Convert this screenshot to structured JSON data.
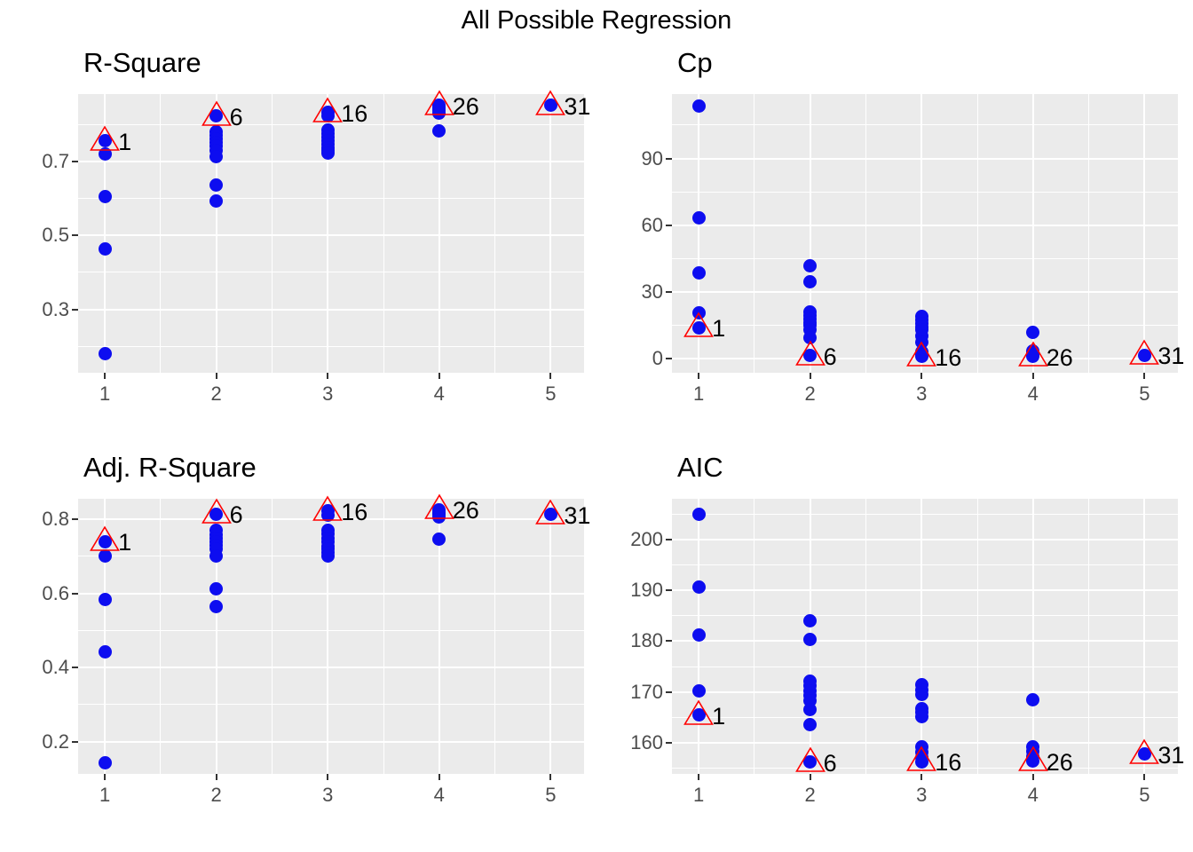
{
  "title": "All Possible Regression",
  "colors": {
    "point": "#0D0DF0",
    "best_marker": "#FF0000",
    "panel_bg": "#EBEBEB",
    "grid": "#FFFFFF",
    "axis_text": "#4D4D4D",
    "tick_mark": "#333333",
    "title_text": "#000000"
  },
  "chart_data": [
    {
      "type": "scatter",
      "title": "R-Square",
      "xlabel": "",
      "ylabel": "",
      "legend": "none",
      "grid": "major+minor",
      "xlim": [
        0.76,
        5.3
      ],
      "ylim": [
        0.129,
        0.882
      ],
      "x_ticks": [
        1,
        2,
        3,
        4,
        5
      ],
      "x_tick_labels": [
        "1",
        "2",
        "3",
        "4",
        "5"
      ],
      "x_minor": [
        1.5,
        2.5,
        3.5,
        4.5
      ],
      "y_major": [
        0.3,
        0.5,
        0.7
      ],
      "y_tick_labels": [
        "0.3",
        "0.5",
        "0.7"
      ],
      "y_minor": [
        0.2,
        0.4,
        0.6,
        0.8
      ],
      "points": [
        [
          1,
          0.755
        ],
        [
          1,
          0.719
        ],
        [
          1,
          0.604
        ],
        [
          1,
          0.464
        ],
        [
          1,
          0.18
        ],
        [
          2,
          0.823
        ],
        [
          2,
          0.781
        ],
        [
          2,
          0.77
        ],
        [
          2,
          0.76
        ],
        [
          2,
          0.751
        ],
        [
          2,
          0.742
        ],
        [
          2,
          0.73
        ],
        [
          2,
          0.714
        ],
        [
          2,
          0.637
        ],
        [
          2,
          0.592
        ],
        [
          3,
          0.832
        ],
        [
          3,
          0.824
        ],
        [
          3,
          0.786
        ],
        [
          3,
          0.776
        ],
        [
          3,
          0.766
        ],
        [
          3,
          0.756
        ],
        [
          3,
          0.747
        ],
        [
          3,
          0.738
        ],
        [
          3,
          0.73
        ],
        [
          3,
          0.722
        ],
        [
          4,
          0.852
        ],
        [
          4,
          0.845
        ],
        [
          4,
          0.838
        ],
        [
          4,
          0.83
        ],
        [
          4,
          0.782
        ],
        [
          5,
          0.852
        ]
      ],
      "best": [
        {
          "x": 1,
          "y": 0.755,
          "label": "1"
        },
        {
          "x": 2,
          "y": 0.823,
          "label": "6"
        },
        {
          "x": 3,
          "y": 0.832,
          "label": "16"
        },
        {
          "x": 4,
          "y": 0.852,
          "label": "26"
        },
        {
          "x": 5,
          "y": 0.852,
          "label": "31"
        }
      ]
    },
    {
      "type": "scatter",
      "title": "Cp",
      "xlabel": "",
      "ylabel": "",
      "legend": "none",
      "grid": "major+minor",
      "xlim": [
        0.76,
        5.3
      ],
      "ylim": [
        -6.2,
        118.9
      ],
      "x_ticks": [
        1,
        2,
        3,
        4,
        5
      ],
      "x_tick_labels": [
        "1",
        "2",
        "3",
        "4",
        "5"
      ],
      "x_minor": [
        1.5,
        2.5,
        3.5,
        4.5
      ],
      "y_major": [
        0,
        30,
        60,
        90
      ],
      "y_tick_labels": [
        "0",
        "30",
        "60",
        "90"
      ],
      "y_minor": [
        15,
        45,
        75,
        105
      ],
      "points": [
        [
          1,
          113.7
        ],
        [
          1,
          63.5
        ],
        [
          1,
          38.5
        ],
        [
          1,
          20.5
        ],
        [
          1,
          14.0
        ],
        [
          2,
          42.0
        ],
        [
          2,
          34.5
        ],
        [
          2,
          21.0
        ],
        [
          2,
          19.5
        ],
        [
          2,
          18.0
        ],
        [
          2,
          16.5
        ],
        [
          2,
          15.0
        ],
        [
          2,
          13.0
        ],
        [
          2,
          9.5
        ],
        [
          2,
          1.4
        ],
        [
          3,
          19.0
        ],
        [
          3,
          17.5
        ],
        [
          3,
          16.0
        ],
        [
          3,
          14.5
        ],
        [
          3,
          13.0
        ],
        [
          3,
          10.5
        ],
        [
          3,
          7.5
        ],
        [
          3,
          3.2
        ],
        [
          3,
          1.8
        ],
        [
          3,
          1.0
        ],
        [
          4,
          11.8
        ],
        [
          4,
          3.5
        ],
        [
          4,
          2.6
        ],
        [
          4,
          1.8
        ],
        [
          4,
          1.0
        ],
        [
          5,
          1.7
        ]
      ],
      "best": [
        {
          "x": 1,
          "y": 14.0,
          "label": "1"
        },
        {
          "x": 2,
          "y": 1.4,
          "label": "6"
        },
        {
          "x": 3,
          "y": 1.0,
          "label": "16"
        },
        {
          "x": 4,
          "y": 1.0,
          "label": "26"
        },
        {
          "x": 5,
          "y": 1.7,
          "label": "31"
        }
      ]
    },
    {
      "type": "scatter",
      "title": "Adj. R-Square",
      "xlabel": "",
      "ylabel": "",
      "legend": "none",
      "grid": "major+minor",
      "xlim": [
        0.76,
        5.3
      ],
      "ylim": [
        0.113,
        0.855
      ],
      "x_ticks": [
        1,
        2,
        3,
        4,
        5
      ],
      "x_tick_labels": [
        "1",
        "2",
        "3",
        "4",
        "5"
      ],
      "x_minor": [
        1.5,
        2.5,
        3.5,
        4.5
      ],
      "y_major": [
        0.2,
        0.4,
        0.6,
        0.8
      ],
      "y_tick_labels": [
        "0.2",
        "0.4",
        "0.6",
        "0.8"
      ],
      "y_minor": [
        0.3,
        0.5,
        0.7
      ],
      "points": [
        [
          1,
          0.74
        ],
        [
          1,
          0.701
        ],
        [
          1,
          0.583
        ],
        [
          1,
          0.441
        ],
        [
          1,
          0.142
        ],
        [
          2,
          0.814
        ],
        [
          2,
          0.769
        ],
        [
          2,
          0.758
        ],
        [
          2,
          0.748
        ],
        [
          2,
          0.739
        ],
        [
          2,
          0.73
        ],
        [
          2,
          0.72
        ],
        [
          2,
          0.7
        ],
        [
          2,
          0.612
        ],
        [
          2,
          0.564
        ],
        [
          3,
          0.822
        ],
        [
          3,
          0.81
        ],
        [
          3,
          0.771
        ],
        [
          3,
          0.76
        ],
        [
          3,
          0.749
        ],
        [
          3,
          0.738
        ],
        [
          3,
          0.728
        ],
        [
          3,
          0.719
        ],
        [
          3,
          0.71
        ],
        [
          3,
          0.701
        ],
        [
          4,
          0.826
        ],
        [
          4,
          0.819
        ],
        [
          4,
          0.812
        ],
        [
          4,
          0.806
        ],
        [
          4,
          0.745
        ],
        [
          5,
          0.812
        ]
      ],
      "best": [
        {
          "x": 1,
          "y": 0.74,
          "label": "1"
        },
        {
          "x": 2,
          "y": 0.814,
          "label": "6"
        },
        {
          "x": 3,
          "y": 0.822,
          "label": "16"
        },
        {
          "x": 4,
          "y": 0.826,
          "label": "26"
        },
        {
          "x": 5,
          "y": 0.812,
          "label": "31"
        }
      ]
    },
    {
      "type": "scatter",
      "title": "AIC",
      "xlabel": "",
      "ylabel": "",
      "legend": "none",
      "grid": "major+minor",
      "xlim": [
        0.76,
        5.3
      ],
      "ylim": [
        153.9,
        208.0
      ],
      "x_ticks": [
        1,
        2,
        3,
        4,
        5
      ],
      "x_tick_labels": [
        "1",
        "2",
        "3",
        "4",
        "5"
      ],
      "x_minor": [
        1.5,
        2.5,
        3.5,
        4.5
      ],
      "y_major": [
        160,
        170,
        180,
        190,
        200
      ],
      "y_tick_labels": [
        "160",
        "170",
        "180",
        "190",
        "200"
      ],
      "y_minor": [
        155,
        165,
        175,
        185,
        195,
        205
      ],
      "points": [
        [
          1,
          204.9
        ],
        [
          1,
          190.6
        ],
        [
          1,
          181.2
        ],
        [
          1,
          170.2
        ],
        [
          1,
          165.5
        ],
        [
          2,
          184.0
        ],
        [
          2,
          180.4
        ],
        [
          2,
          172.2
        ],
        [
          2,
          171.2
        ],
        [
          2,
          170.3
        ],
        [
          2,
          169.3
        ],
        [
          2,
          168.3
        ],
        [
          2,
          166.5
        ],
        [
          2,
          163.5
        ],
        [
          2,
          156.2
        ],
        [
          3,
          171.4
        ],
        [
          3,
          170.4
        ],
        [
          3,
          169.6
        ],
        [
          3,
          166.8
        ],
        [
          3,
          166.0
        ],
        [
          3,
          165.2
        ],
        [
          3,
          159.3
        ],
        [
          3,
          158.2
        ],
        [
          3,
          157.2
        ],
        [
          3,
          156.3
        ],
        [
          4,
          168.4
        ],
        [
          4,
          159.3
        ],
        [
          4,
          158.3
        ],
        [
          4,
          157.3
        ],
        [
          4,
          156.4
        ],
        [
          5,
          157.8
        ]
      ],
      "best": [
        {
          "x": 1,
          "y": 165.5,
          "label": "1"
        },
        {
          "x": 2,
          "y": 156.2,
          "label": "6"
        },
        {
          "x": 3,
          "y": 156.3,
          "label": "16"
        },
        {
          "x": 4,
          "y": 156.4,
          "label": "26"
        },
        {
          "x": 5,
          "y": 157.8,
          "label": "31"
        }
      ]
    }
  ]
}
